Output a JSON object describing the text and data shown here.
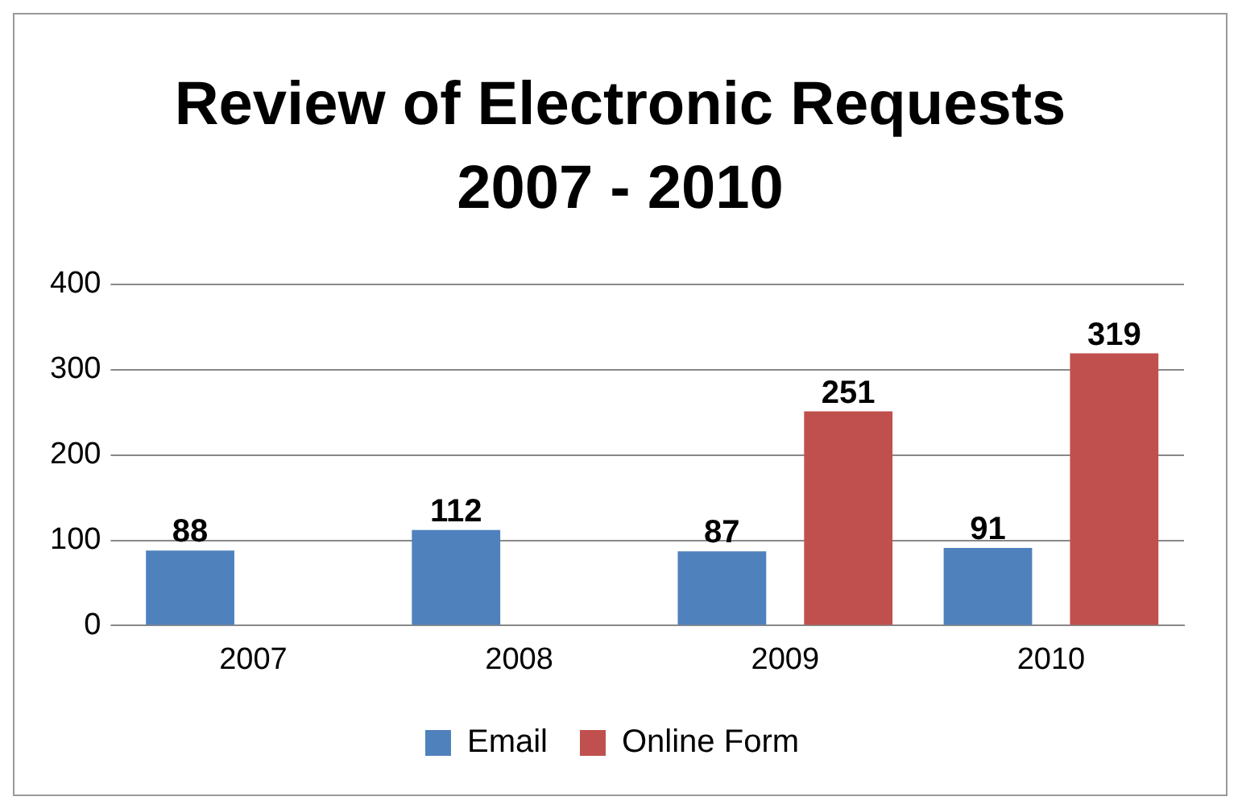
{
  "chart_data": {
    "type": "bar",
    "title": "Review of Electronic Requests 2007 - 2010",
    "categories": [
      "2007",
      "2008",
      "2009",
      "2010"
    ],
    "series": [
      {
        "name": "Email",
        "color": "#4f81bd",
        "values": [
          88,
          112,
          87,
          91
        ]
      },
      {
        "name": "Online Form",
        "color": "#c0504d",
        "values": [
          null,
          null,
          251,
          319
        ]
      }
    ],
    "ylim": [
      0,
      400
    ],
    "yticks": [
      0,
      100,
      200,
      300,
      400
    ],
    "grid": "y",
    "legend": "bottom",
    "data_labels": true
  }
}
